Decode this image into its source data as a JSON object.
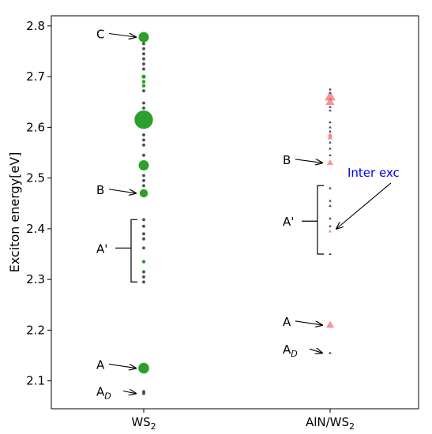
{
  "chart_data": {
    "type": "scatter",
    "title": "",
    "ylabel": "Exciton energy[eV]",
    "ylim": [
      2.045,
      2.82
    ],
    "yticks": [
      "2.1",
      "2.2",
      "2.3",
      "2.4",
      "2.5",
      "2.6",
      "2.7",
      "2.8"
    ],
    "categories": [
      {
        "label": "WS",
        "sub": "2"
      },
      {
        "label": "AlN/WS",
        "sub": "2"
      }
    ],
    "grid": false,
    "series": [
      {
        "category": 0,
        "marker": "circle",
        "color": "#2ca02c",
        "points": [
          {
            "y": 2.778,
            "size": 1.0
          },
          {
            "y": 2.7,
            "size": 0.4
          },
          {
            "y": 2.69,
            "size": 0.35
          },
          {
            "y": 2.682,
            "size": 0.35
          },
          {
            "y": 2.615,
            "size": 1.8
          },
          {
            "y": 2.525,
            "size": 1.0
          },
          {
            "y": 2.47,
            "size": 0.8
          },
          {
            "y": 2.335,
            "size": 0.35
          },
          {
            "y": 2.125,
            "size": 1.05
          }
        ]
      },
      {
        "category": 0,
        "marker": "circle",
        "color": "#333333",
        "points": [
          {
            "y": 2.765,
            "size": 0.3
          },
          {
            "y": 2.755,
            "size": 0.3
          },
          {
            "y": 2.745,
            "size": 0.3
          },
          {
            "y": 2.735,
            "size": 0.3
          },
          {
            "y": 2.725,
            "size": 0.3
          },
          {
            "y": 2.715,
            "size": 0.3
          },
          {
            "y": 2.672,
            "size": 0.3
          },
          {
            "y": 2.648,
            "size": 0.3
          },
          {
            "y": 2.638,
            "size": 0.3
          },
          {
            "y": 2.585,
            "size": 0.3
          },
          {
            "y": 2.575,
            "size": 0.3
          },
          {
            "y": 2.565,
            "size": 0.3
          },
          {
            "y": 2.545,
            "size": 0.3
          },
          {
            "y": 2.505,
            "size": 0.3
          },
          {
            "y": 2.495,
            "size": 0.3
          },
          {
            "y": 2.485,
            "size": 0.3
          },
          {
            "y": 2.418,
            "size": 0.3
          },
          {
            "y": 2.405,
            "size": 0.3
          },
          {
            "y": 2.39,
            "size": 0.3
          },
          {
            "y": 2.38,
            "size": 0.3
          },
          {
            "y": 2.362,
            "size": 0.3
          },
          {
            "y": 2.315,
            "size": 0.3
          },
          {
            "y": 2.305,
            "size": 0.3
          },
          {
            "y": 2.295,
            "size": 0.3
          },
          {
            "y": 2.079,
            "size": 0.3
          },
          {
            "y": 2.075,
            "size": 0.3
          }
        ]
      },
      {
        "category": 1,
        "marker": "triangle",
        "color": "#e8514f",
        "points": [
          {
            "y": 2.66,
            "size": 1.1
          },
          {
            "y": 2.65,
            "size": 0.9
          },
          {
            "y": 2.585,
            "size": 0.5
          },
          {
            "y": 2.58,
            "size": 0.55
          },
          {
            "y": 2.53,
            "size": 0.65
          },
          {
            "y": 2.395,
            "size": 0.35
          },
          {
            "y": 2.21,
            "size": 0.8
          }
        ]
      },
      {
        "category": 1,
        "marker": "triangle",
        "color": "#222222",
        "points": [
          {
            "y": 2.675,
            "size": 0.25
          },
          {
            "y": 2.668,
            "size": 0.25
          },
          {
            "y": 2.64,
            "size": 0.25
          },
          {
            "y": 2.633,
            "size": 0.25
          },
          {
            "y": 2.61,
            "size": 0.25
          },
          {
            "y": 2.6,
            "size": 0.25
          },
          {
            "y": 2.592,
            "size": 0.25
          },
          {
            "y": 2.57,
            "size": 0.25
          },
          {
            "y": 2.558,
            "size": 0.25
          },
          {
            "y": 2.545,
            "size": 0.25
          },
          {
            "y": 2.48,
            "size": 0.25
          },
          {
            "y": 2.455,
            "size": 0.25
          },
          {
            "y": 2.445,
            "size": 0.25
          },
          {
            "y": 2.42,
            "size": 0.25
          },
          {
            "y": 2.405,
            "size": 0.25
          },
          {
            "y": 2.35,
            "size": 0.25
          },
          {
            "y": 2.155,
            "size": 0.25
          }
        ]
      }
    ],
    "annotations": [
      {
        "text": "C",
        "sub": "",
        "category": 0,
        "y": 2.785,
        "target_y": 2.778,
        "side": "left"
      },
      {
        "text": "B",
        "sub": "",
        "category": 0,
        "y": 2.478,
        "target_y": 2.47,
        "side": "left"
      },
      {
        "text": "A'",
        "sub": "",
        "category": 0,
        "y": 2.362,
        "bracket": [
          2.418,
          2.295
        ],
        "side": "left"
      },
      {
        "text": "A",
        "sub": "",
        "category": 0,
        "y": 2.133,
        "target_y": 2.125,
        "side": "left"
      },
      {
        "text": "A",
        "sub": "D",
        "category": 0,
        "y": 2.08,
        "target_y": 2.075,
        "side": "left"
      },
      {
        "text": "B",
        "sub": "",
        "category": 1,
        "y": 2.537,
        "target_y": 2.53,
        "side": "left"
      },
      {
        "text": "A'",
        "sub": "",
        "category": 1,
        "y": 2.415,
        "bracket": [
          2.485,
          2.35
        ],
        "side": "left"
      },
      {
        "text": "A",
        "sub": "",
        "category": 1,
        "y": 2.218,
        "target_y": 2.21,
        "side": "left"
      },
      {
        "text": "A",
        "sub": "D",
        "category": 1,
        "y": 2.163,
        "target_y": 2.155,
        "side": "left"
      },
      {
        "text": "Inter exc",
        "sub": "",
        "category": 1,
        "y": 2.512,
        "target_y": 2.4,
        "side": "right",
        "color": "#0000ee"
      }
    ]
  }
}
